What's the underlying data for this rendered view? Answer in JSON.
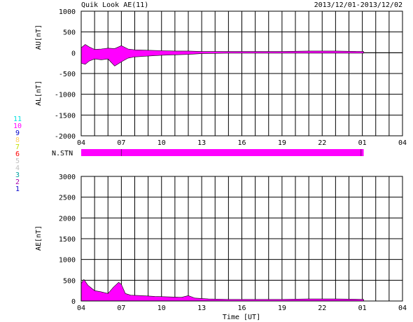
{
  "header": {
    "title": "Quik Look AE(11)",
    "date_range": "2013/12/01-2013/12/02"
  },
  "colors": {
    "trace": "#ff00ff",
    "grid": "#000000",
    "background": "#ffffff"
  },
  "station_legend": {
    "label": "N.STN",
    "numbers": [
      {
        "n": "11",
        "color": "#00e0e0"
      },
      {
        "n": "10",
        "color": "#ff00ff"
      },
      {
        "n": "9",
        "color": "#0000cc"
      },
      {
        "n": "8",
        "color": "#ffd060"
      },
      {
        "n": "7",
        "color": "#c0e000"
      },
      {
        "n": "6",
        "color": "#ff0000"
      },
      {
        "n": "5",
        "color": "#c0c0c0"
      },
      {
        "n": "4",
        "color": "#c0c0c0"
      },
      {
        "n": "3",
        "color": "#00a0a0"
      },
      {
        "n": "2",
        "color": "#aa00aa"
      },
      {
        "n": "1",
        "color": "#0000cc"
      }
    ]
  },
  "chart_data": [
    {
      "type": "area",
      "panel": "AU/AL",
      "ylabel_upper": "AU[nT]",
      "ylabel_lower": "AL[nT]",
      "ylim": [
        -2000,
        1000
      ],
      "yticks": [
        "1000",
        "500",
        "0",
        "-500",
        "-1000",
        "-1500",
        "-2000"
      ],
      "xticks": [
        "04",
        "07",
        "10",
        "13",
        "16",
        "19",
        "22",
        "01",
        "04"
      ],
      "x_unit": "hour UT",
      "x_range": [
        4,
        28
      ],
      "data_end": 25.1,
      "series": [
        {
          "name": "AU",
          "x": [
            4.0,
            4.3,
            4.6,
            5.0,
            5.5,
            6.0,
            6.5,
            7.0,
            7.5,
            8.0,
            9.0,
            10.0,
            11.0,
            12.0,
            13.0,
            15.0,
            17.0,
            19.0,
            21.0,
            23.0,
            25.1
          ],
          "values": [
            120,
            200,
            140,
            80,
            90,
            110,
            100,
            170,
            90,
            70,
            60,
            50,
            40,
            40,
            30,
            30,
            30,
            30,
            40,
            40,
            30
          ]
        },
        {
          "name": "AL",
          "x": [
            4.0,
            4.3,
            4.6,
            5.0,
            5.5,
            6.0,
            6.5,
            7.0,
            7.5,
            8.0,
            9.0,
            10.0,
            11.0,
            12.0,
            13.0,
            15.0,
            17.0,
            19.0,
            21.0,
            23.0,
            25.1
          ],
          "values": [
            -250,
            -280,
            -200,
            -150,
            -170,
            -150,
            -320,
            -220,
            -130,
            -100,
            -80,
            -60,
            -50,
            -40,
            -20,
            -10,
            -10,
            -10,
            -10,
            -10,
            -10
          ]
        }
      ]
    },
    {
      "type": "area",
      "panel": "AE",
      "ylabel": "AE[nT]",
      "xlabel": "Time [UT]",
      "ylim": [
        0,
        3000
      ],
      "yticks": [
        "3000",
        "2500",
        "2000",
        "1500",
        "1000",
        "500",
        "0"
      ],
      "xticks": [
        "04",
        "07",
        "10",
        "13",
        "16",
        "19",
        "22",
        "01",
        "04"
      ],
      "x_unit": "hour UT",
      "x_range": [
        4,
        28
      ],
      "data_end": 25.1,
      "series": [
        {
          "name": "AE",
          "x": [
            4.0,
            4.2,
            4.5,
            5.0,
            5.5,
            6.0,
            6.4,
            6.8,
            7.0,
            7.3,
            7.7,
            8.5,
            9.5,
            10.5,
            11.5,
            12.0,
            12.5,
            13.5,
            15.0,
            17.0,
            19.0,
            21.0,
            23.0,
            25.1
          ],
          "values": [
            420,
            520,
            380,
            250,
            220,
            180,
            330,
            450,
            400,
            180,
            140,
            130,
            110,
            100,
            90,
            130,
            70,
            50,
            40,
            40,
            40,
            50,
            50,
            40
          ]
        }
      ]
    }
  ]
}
